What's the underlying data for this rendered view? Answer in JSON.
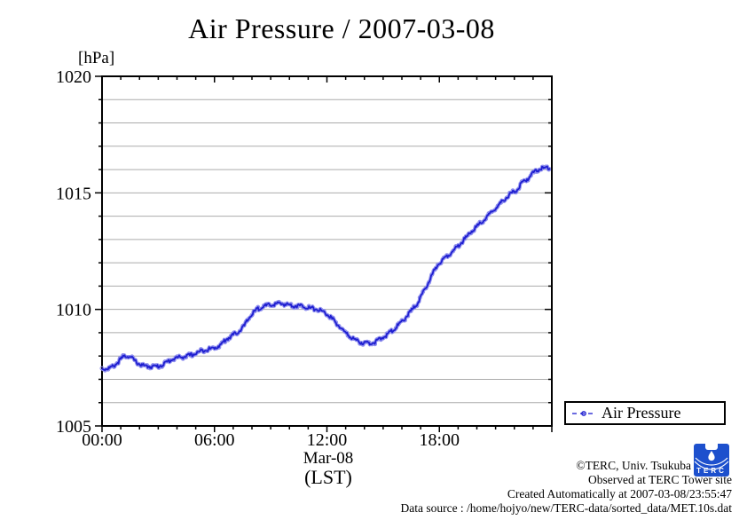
{
  "chart": {
    "title": "Air Pressure / 2007-03-08",
    "unit_label": "[hPa]",
    "x_date_label": "Mar-08",
    "x_tz_label": "(LST)"
  },
  "legend": {
    "label": "Air Pressure"
  },
  "footer": {
    "lines": [
      "©TERC, Univ. Tsukuba",
      "Observed at TERC Tower site",
      "Created Automatically at 2007-03-08/23:55:47",
      "Data source : /home/hojyo/new/TERC-data/sorted_data/MET.10s.dat"
    ],
    "logo_text": "TERC"
  },
  "colors": {
    "line_core": "#1f1fd0",
    "line_halo": "#8d8dee",
    "grid": "#ababab",
    "axis": "#000000",
    "logo_blue": "#1d50cd"
  },
  "chart_data": {
    "type": "line",
    "title": "Air Pressure / 2007-03-08",
    "xlabel": "Mar-08 (LST)",
    "ylabel": "[hPa]",
    "xlim_hours": [
      0,
      24
    ],
    "ylim": [
      1005,
      1020
    ],
    "x_major_ticks": [
      {
        "hour": 0,
        "label": "00:00"
      },
      {
        "hour": 6,
        "label": "06:00"
      },
      {
        "hour": 12,
        "label": "12:00"
      },
      {
        "hour": 18,
        "label": "18:00"
      },
      {
        "hour": 24,
        "label": ""
      }
    ],
    "x_minor_step_hours": 1,
    "y_major_ticks": [
      1005,
      1010,
      1015,
      1020
    ],
    "y_minor_step": 1,
    "grid": "horizontal minor gridlines only",
    "legend_position": "outside-bottom-right",
    "series": [
      {
        "name": "Air Pressure",
        "units": "hPa",
        "points_hour_hpa": [
          [
            0.0,
            1007.5
          ],
          [
            0.25,
            1007.5
          ],
          [
            0.5,
            1007.55
          ],
          [
            0.75,
            1007.7
          ],
          [
            1.0,
            1007.9
          ],
          [
            1.2,
            1008.05
          ],
          [
            1.4,
            1008.05
          ],
          [
            1.6,
            1007.95
          ],
          [
            1.8,
            1007.8
          ],
          [
            2.0,
            1007.7
          ],
          [
            2.3,
            1007.6
          ],
          [
            2.6,
            1007.6
          ],
          [
            3.0,
            1007.6
          ],
          [
            3.3,
            1007.7
          ],
          [
            3.6,
            1007.85
          ],
          [
            3.9,
            1007.95
          ],
          [
            4.2,
            1008.0
          ],
          [
            4.6,
            1008.05
          ],
          [
            5.0,
            1008.15
          ],
          [
            5.4,
            1008.3
          ],
          [
            5.8,
            1008.35
          ],
          [
            6.0,
            1008.4
          ],
          [
            6.3,
            1008.5
          ],
          [
            6.6,
            1008.75
          ],
          [
            7.0,
            1008.95
          ],
          [
            7.3,
            1009.1
          ],
          [
            7.6,
            1009.35
          ],
          [
            7.9,
            1009.75
          ],
          [
            8.2,
            1010.0
          ],
          [
            8.5,
            1010.15
          ],
          [
            8.8,
            1010.2
          ],
          [
            9.1,
            1010.25
          ],
          [
            9.5,
            1010.3
          ],
          [
            9.9,
            1010.25
          ],
          [
            10.3,
            1010.2
          ],
          [
            10.7,
            1010.2
          ],
          [
            11.1,
            1010.1
          ],
          [
            11.5,
            1010.05
          ],
          [
            11.9,
            1009.9
          ],
          [
            12.2,
            1009.7
          ],
          [
            12.5,
            1009.45
          ],
          [
            12.8,
            1009.2
          ],
          [
            13.1,
            1008.95
          ],
          [
            13.4,
            1008.8
          ],
          [
            13.7,
            1008.65
          ],
          [
            14.0,
            1008.6
          ],
          [
            14.3,
            1008.6
          ],
          [
            14.6,
            1008.65
          ],
          [
            14.9,
            1008.8
          ],
          [
            15.2,
            1008.95
          ],
          [
            15.5,
            1009.15
          ],
          [
            15.8,
            1009.35
          ],
          [
            16.1,
            1009.6
          ],
          [
            16.4,
            1009.9
          ],
          [
            16.7,
            1010.15
          ],
          [
            17.0,
            1010.55
          ],
          [
            17.3,
            1011.0
          ],
          [
            17.6,
            1011.5
          ],
          [
            17.9,
            1011.95
          ],
          [
            18.2,
            1012.2
          ],
          [
            18.5,
            1012.4
          ],
          [
            18.8,
            1012.6
          ],
          [
            19.1,
            1012.85
          ],
          [
            19.4,
            1013.1
          ],
          [
            19.7,
            1013.4
          ],
          [
            20.0,
            1013.6
          ],
          [
            20.3,
            1013.8
          ],
          [
            20.6,
            1014.05
          ],
          [
            20.9,
            1014.3
          ],
          [
            21.2,
            1014.55
          ],
          [
            21.5,
            1014.8
          ],
          [
            21.8,
            1015.0
          ],
          [
            22.1,
            1015.15
          ],
          [
            22.4,
            1015.45
          ],
          [
            22.7,
            1015.65
          ],
          [
            23.0,
            1015.9
          ],
          [
            23.3,
            1016.05
          ],
          [
            23.6,
            1016.1
          ],
          [
            23.92,
            1016.15
          ]
        ]
      }
    ]
  }
}
